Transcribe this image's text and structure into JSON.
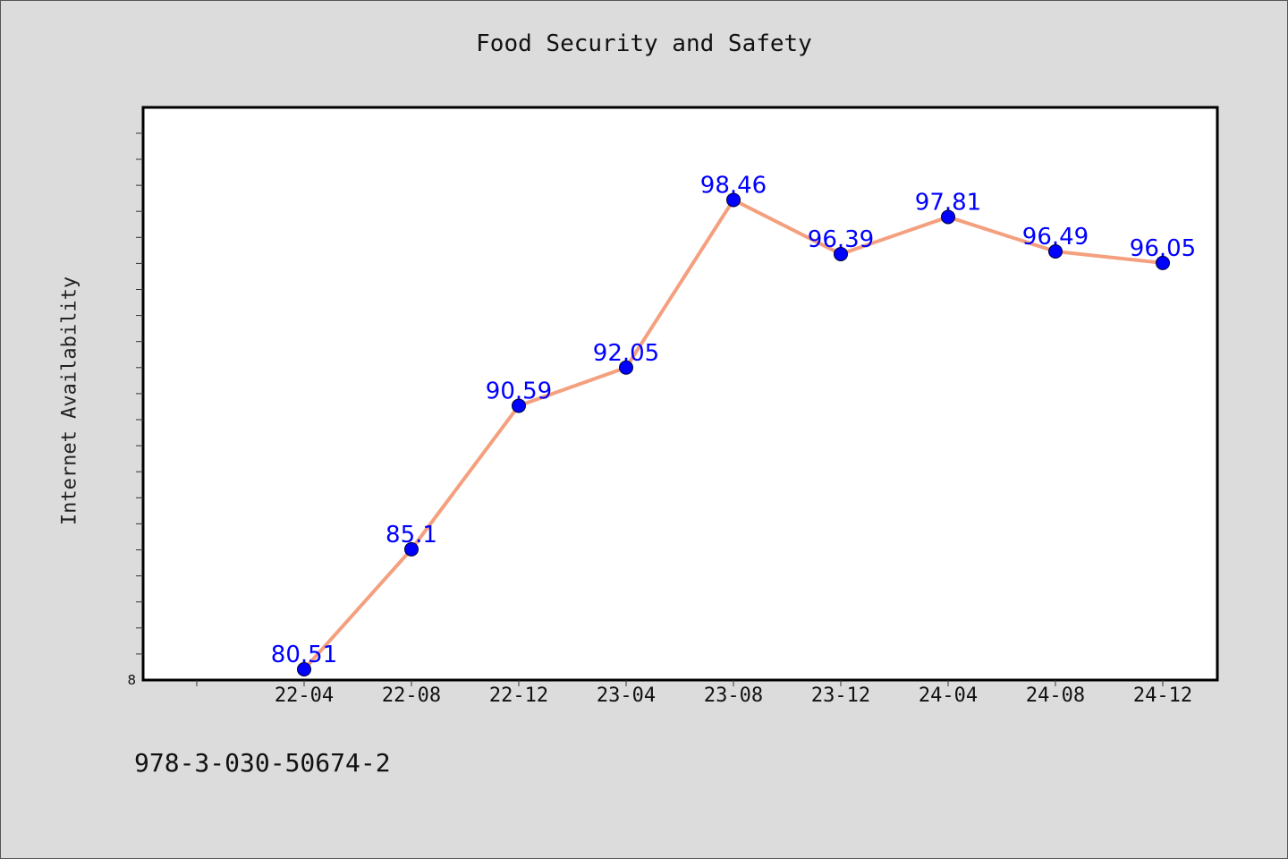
{
  "chart_data": {
    "type": "line",
    "title": "Food Security and Safety",
    "xlabel": "",
    "ylabel": "Internet Availability",
    "categories": [
      "22-04",
      "22-08",
      "22-12",
      "23-04",
      "23-08",
      "23-12",
      "24-04",
      "24-08",
      "24-12"
    ],
    "series": [
      {
        "values": [
          80.51,
          85.1,
          90.59,
          92.05,
          98.46,
          96.39,
          97.81,
          96.49,
          96.05
        ]
      }
    ],
    "ylim": [
      80.1,
      102.0
    ],
    "y_tick_labels": [
      "8"
    ],
    "show_data_labels": true,
    "grid": false,
    "colors": {
      "line": "#f4a07e",
      "marker": "#0000ff",
      "label": "#0000ff",
      "background": "#dcdcdc",
      "plot_background": "#ffffff"
    }
  },
  "footer": {
    "isbn": "978-3-030-50674-2"
  }
}
